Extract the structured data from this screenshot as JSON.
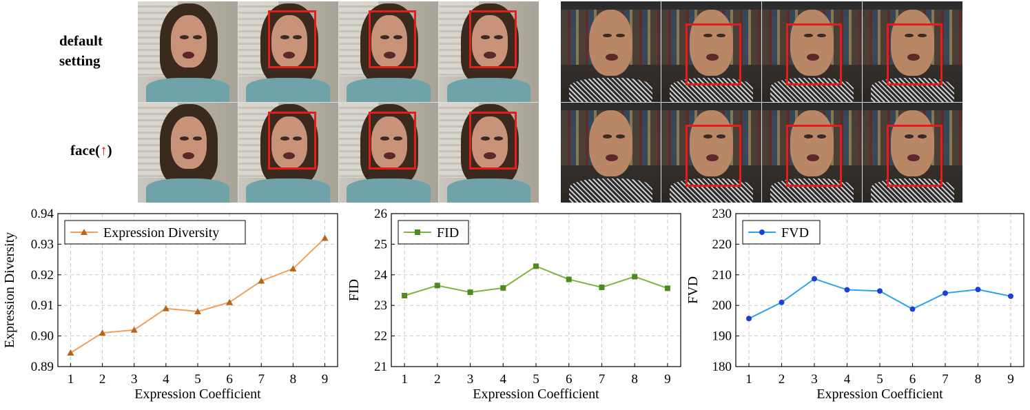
{
  "labels": {
    "row1_line1": "default",
    "row1_line2": "setting",
    "row2_prefix": "face(",
    "row2_arrow": "↑",
    "row2_suffix": ")"
  },
  "colors": {
    "highlight_box": "#e41c1c",
    "arrow": "#e0201b"
  },
  "chart_data": [
    {
      "type": "line",
      "x": [
        1,
        2,
        3,
        4,
        5,
        6,
        7,
        8,
        9
      ],
      "series": [
        {
          "name": "Expression Diversity",
          "values": [
            0.8945,
            0.901,
            0.902,
            0.909,
            0.908,
            0.911,
            0.918,
            0.922,
            0.932
          ],
          "color": "#f0a05a",
          "marker": "triangle",
          "marker_color": "#b5651d"
        }
      ],
      "xlabel": "Expression Coefficient",
      "ylabel": "Expression Diversity",
      "ylim": [
        0.89,
        0.94
      ],
      "yticks": [
        "0.89",
        "0.90",
        "0.91",
        "0.92",
        "0.93",
        "0.94"
      ],
      "xticks": [
        "1",
        "2",
        "3",
        "4",
        "5",
        "6",
        "7",
        "8",
        "9"
      ],
      "grid": true,
      "legend": "top-left"
    },
    {
      "type": "line",
      "x": [
        1,
        2,
        3,
        4,
        5,
        6,
        7,
        8,
        9
      ],
      "series": [
        {
          "name": "FID",
          "values": [
            23.32,
            23.65,
            23.43,
            23.57,
            24.28,
            23.85,
            23.59,
            23.94,
            23.56
          ],
          "color": "#7cb342",
          "marker": "square",
          "marker_color": "#4f8a1f"
        }
      ],
      "xlabel": "Expression Coefficient",
      "ylabel": "FID",
      "ylim": [
        21,
        26
      ],
      "yticks": [
        "21",
        "22",
        "23",
        "24",
        "25",
        "26"
      ],
      "xticks": [
        "1",
        "2",
        "3",
        "4",
        "5",
        "6",
        "7",
        "8",
        "9"
      ],
      "grid": true,
      "legend": "top-left"
    },
    {
      "type": "line",
      "x": [
        1,
        2,
        3,
        4,
        5,
        6,
        7,
        8,
        9
      ],
      "series": [
        {
          "name": "FVD",
          "values": [
            195.7,
            201.0,
            208.7,
            205.1,
            204.7,
            198.8,
            204.0,
            205.2,
            203.0
          ],
          "color": "#29a3f0",
          "marker": "circle",
          "marker_color": "#1e3fd6"
        }
      ],
      "xlabel": "Expression Coefficient",
      "ylabel": "FVD",
      "ylim": [
        180,
        230
      ],
      "yticks": [
        "180",
        "190",
        "200",
        "210",
        "220",
        "230"
      ],
      "xticks": [
        "1",
        "2",
        "3",
        "4",
        "5",
        "6",
        "7",
        "8",
        "9"
      ],
      "grid": true,
      "legend": "top-left"
    }
  ]
}
